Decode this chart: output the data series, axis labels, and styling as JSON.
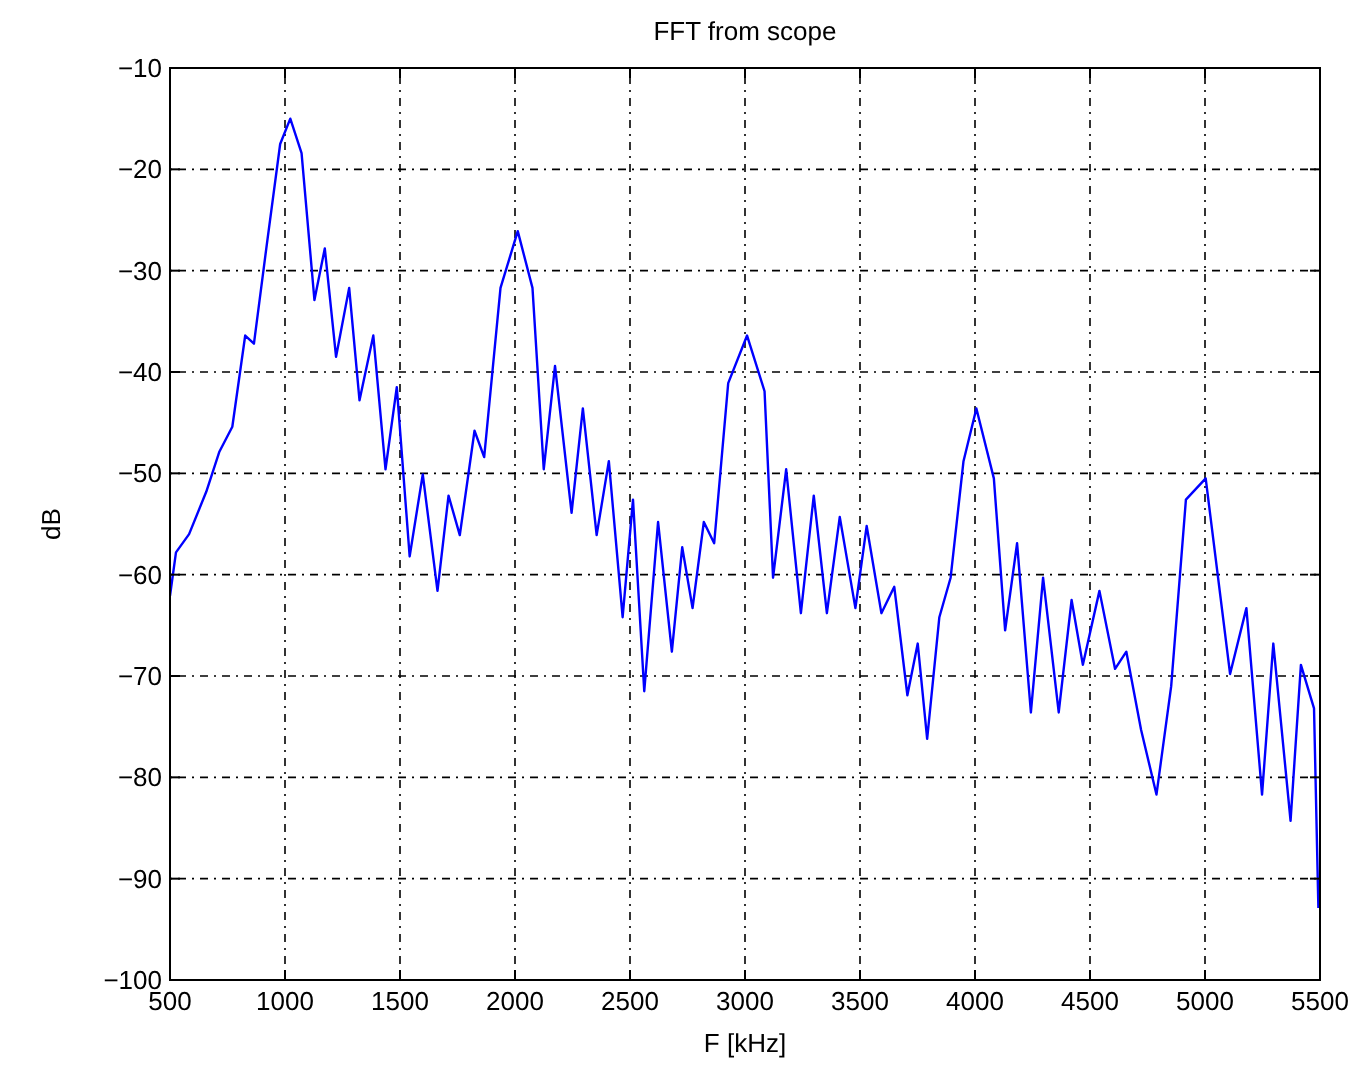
{
  "chart_data": {
    "type": "line",
    "title": "FFT from scope",
    "xlabel": "F [kHz]",
    "ylabel": "dB",
    "xlim": [
      500,
      5500
    ],
    "xticks": [
      500,
      1000,
      1500,
      2000,
      2500,
      3000,
      3500,
      4000,
      4500,
      5000,
      5500
    ],
    "ylim": [
      -100,
      -10
    ],
    "yticks": [
      -100,
      -90,
      -80,
      -70,
      -60,
      -50,
      -40,
      -30,
      -20,
      -10
    ],
    "grid": true,
    "marker": "none",
    "line_style": "solid",
    "series": [
      {
        "color": "#0000ff",
        "x": [
          500,
          526,
          583,
          658,
          714,
          771,
          827,
          865,
          921,
          979,
          1023,
          1072,
          1128,
          1173,
          1222,
          1279,
          1324,
          1384,
          1437,
          1486,
          1542,
          1599,
          1663,
          1711,
          1760,
          1824,
          1866,
          1937,
          2012,
          2076,
          2125,
          2174,
          2246,
          2295,
          2355,
          2408,
          2468,
          2513,
          2562,
          2622,
          2682,
          2727,
          2772,
          2821,
          2866,
          2927,
          3009,
          3085,
          3122,
          3179,
          3243,
          3299,
          3356,
          3412,
          3480,
          3529,
          3593,
          3649,
          3706,
          3751,
          3792,
          3845,
          3894,
          3950,
          4006,
          4082,
          4131,
          4183,
          4243,
          4296,
          4364,
          4420,
          4469,
          4541,
          4609,
          4658,
          4722,
          4789,
          4853,
          4917,
          5003,
          5109,
          5180,
          5248,
          5297,
          5372,
          5417,
          5474,
          5493
        ],
        "values": [
          -62.1,
          -57.8,
          -56,
          -51.8,
          -47.9,
          -45.4,
          -36.4,
          -37.2,
          -27.4,
          -17.5,
          -15,
          -18.4,
          -32.9,
          -27.8,
          -38.5,
          -31.7,
          -42.8,
          -36.4,
          -49.6,
          -41.5,
          -58.2,
          -50.1,
          -61.6,
          -52.2,
          -56.1,
          -45.8,
          -48.4,
          -31.7,
          -26.1,
          -31.7,
          -49.6,
          -39.4,
          -53.9,
          -43.6,
          -56.1,
          -48.8,
          -64.2,
          -52.6,
          -71.5,
          -54.8,
          -67.6,
          -57.3,
          -63.3,
          -54.8,
          -56.9,
          -41.1,
          -36.4,
          -41.9,
          -60.3,
          -49.6,
          -63.8,
          -52.2,
          -63.8,
          -54.3,
          -63.3,
          -55.2,
          -63.8,
          -61.2,
          -71.9,
          -66.8,
          -76.2,
          -64.2,
          -60.3,
          -48.8,
          -43.6,
          -50.5,
          -65.5,
          -56.9,
          -73.6,
          -60.3,
          -73.6,
          -62.5,
          -68.9,
          -61.6,
          -69.3,
          -67.6,
          -75.3,
          -81.7,
          -71,
          -52.6,
          -50.5,
          -69.8,
          -63.3,
          -81.7,
          -66.8,
          -84.3,
          -68.9,
          -73.2,
          -92.9
        ]
      }
    ]
  }
}
